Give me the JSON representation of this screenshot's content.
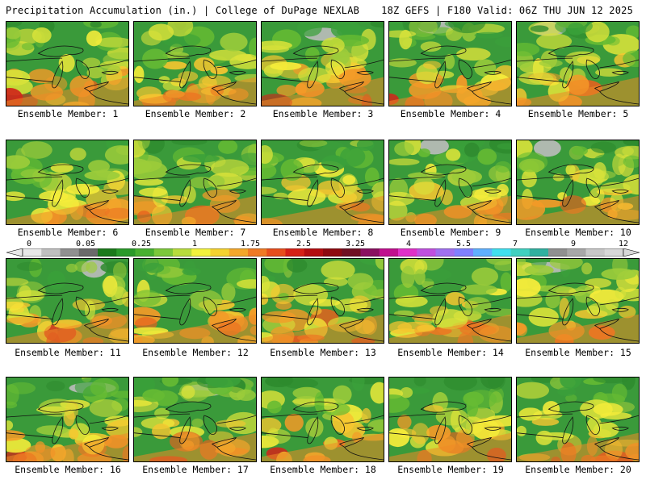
{
  "header": {
    "title": "Precipitation Accumulation (in.) | College of DuPage NEXLAB",
    "run_info": "18Z GEFS | F180 Valid: 06Z THU JUN 12 2025"
  },
  "colorbar": {
    "labels": [
      "0",
      "0.05",
      "0.25",
      "1",
      "1.75",
      "2.5",
      "3.25",
      "4",
      "5.5",
      "7",
      "9",
      "12"
    ],
    "colors": [
      "#e8e8e8",
      "#c0c0c0",
      "#909090",
      "#6a6a6a",
      "#1b7a1b",
      "#2a9a2a",
      "#48b030",
      "#7cc83a",
      "#b7dc3c",
      "#f2f23c",
      "#f5d22f",
      "#f4a72a",
      "#f07a24",
      "#e84e1c",
      "#d62016",
      "#b40d10",
      "#8e0a10",
      "#701022",
      "#8a1060",
      "#c0108e",
      "#e030c8",
      "#c050e0",
      "#a070f0",
      "#8080ff",
      "#60b0ff",
      "#40e0f0",
      "#40d0c0",
      "#30b0a0",
      "#909090",
      "#a8a8a8",
      "#c8c8c8",
      "#d8d8d8"
    ]
  },
  "members": [
    {
      "label": "Ensemble Member: 1"
    },
    {
      "label": "Ensemble Member: 2"
    },
    {
      "label": "Ensemble Member: 3"
    },
    {
      "label": "Ensemble Member: 4"
    },
    {
      "label": "Ensemble Member: 5"
    },
    {
      "label": "Ensemble Member: 6"
    },
    {
      "label": "Ensemble Member: 7"
    },
    {
      "label": "Ensemble Member: 8"
    },
    {
      "label": "Ensemble Member: 9"
    },
    {
      "label": "Ensemble Member: 10"
    },
    {
      "label": "Ensemble Member: 11"
    },
    {
      "label": "Ensemble Member: 12"
    },
    {
      "label": "Ensemble Member: 13"
    },
    {
      "label": "Ensemble Member: 14"
    },
    {
      "label": "Ensemble Member: 15"
    },
    {
      "label": "Ensemble Member: 16"
    },
    {
      "label": "Ensemble Member: 17"
    },
    {
      "label": "Ensemble Member: 18"
    },
    {
      "label": "Ensemble Member: 19"
    },
    {
      "label": "Ensemble Member: 20"
    }
  ]
}
